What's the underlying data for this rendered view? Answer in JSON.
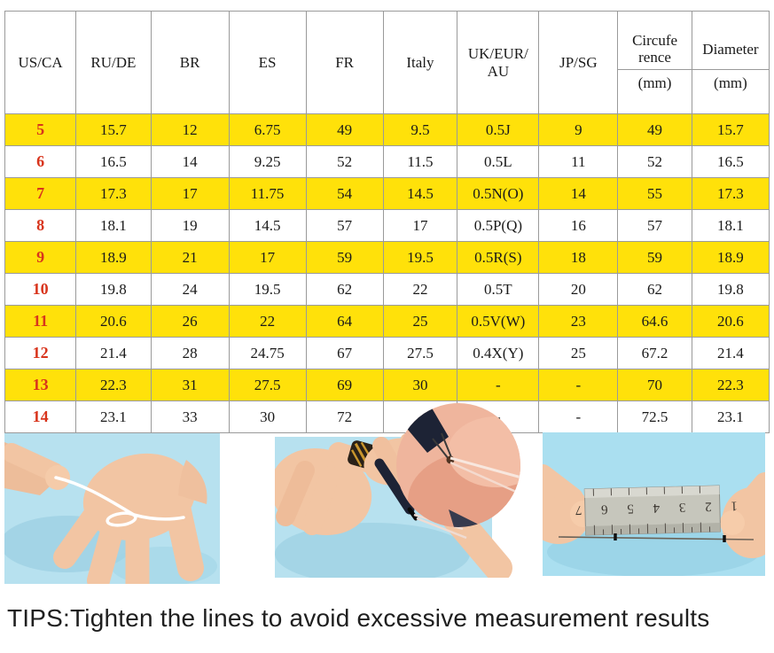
{
  "table": {
    "headers": [
      {
        "label": "US/CA"
      },
      {
        "label": "RU/DE"
      },
      {
        "label": "BR"
      },
      {
        "label": "ES"
      },
      {
        "label": "FR"
      },
      {
        "label": "Italy"
      },
      {
        "label": "UK/EUR/\nAU"
      },
      {
        "label": "JP/SG"
      },
      {
        "label": "Circufe\nrence",
        "sub": "(mm)"
      },
      {
        "label": "Diameter",
        "sub": "(mm)"
      }
    ],
    "rows": [
      {
        "highlight": true,
        "cells": [
          "5",
          "15.7",
          "12",
          "6.75",
          "49",
          "9.5",
          "0.5J",
          "9",
          "49",
          "15.7"
        ]
      },
      {
        "highlight": false,
        "cells": [
          "6",
          "16.5",
          "14",
          "9.25",
          "52",
          "11.5",
          "0.5L",
          "11",
          "52",
          "16.5"
        ]
      },
      {
        "highlight": true,
        "cells": [
          "7",
          "17.3",
          "17",
          "11.75",
          "54",
          "14.5",
          "0.5N(O)",
          "14",
          "55",
          "17.3"
        ]
      },
      {
        "highlight": false,
        "cells": [
          "8",
          "18.1",
          "19",
          "14.5",
          "57",
          "17",
          "0.5P(Q)",
          "16",
          "57",
          "18.1"
        ]
      },
      {
        "highlight": true,
        "cells": [
          "9",
          "18.9",
          "21",
          "17",
          "59",
          "19.5",
          "0.5R(S)",
          "18",
          "59",
          "18.9"
        ]
      },
      {
        "highlight": false,
        "cells": [
          "10",
          "19.8",
          "24",
          "19.5",
          "62",
          "22",
          "0.5T",
          "20",
          "62",
          "19.8"
        ]
      },
      {
        "highlight": true,
        "cells": [
          "11",
          "20.6",
          "26",
          "22",
          "64",
          "25",
          "0.5V(W)",
          "23",
          "64.6",
          "20.6"
        ]
      },
      {
        "highlight": false,
        "cells": [
          "12",
          "21.4",
          "28",
          "24.75",
          "67",
          "27.5",
          "0.4X(Y)",
          "25",
          "67.2",
          "21.4"
        ]
      },
      {
        "highlight": true,
        "cells": [
          "13",
          "22.3",
          "31",
          "27.5",
          "69",
          "30",
          "-",
          "-",
          "70",
          "22.3"
        ]
      },
      {
        "highlight": false,
        "cells": [
          "14",
          "23.1",
          "33",
          "30",
          "72",
          "-",
          "-",
          "-",
          "72.5",
          "23.1"
        ]
      }
    ]
  },
  "photos": {
    "items": [
      {
        "name": "wrap-string-around-finger-photo"
      },
      {
        "name": "mark-string-closeup-photo"
      },
      {
        "name": "measure-string-with-ruler-photo",
        "ruler_digits": "1 2 3 4 5 6 7"
      }
    ]
  },
  "tips": "TIPS:Tighten the lines to avoid excessive measurement results",
  "colors": {
    "highlight_yellow": "#FFE10A",
    "size_red": "#D8341C",
    "photo_blue": "#B7E1EF",
    "border_gray": "#9A9A9A"
  }
}
